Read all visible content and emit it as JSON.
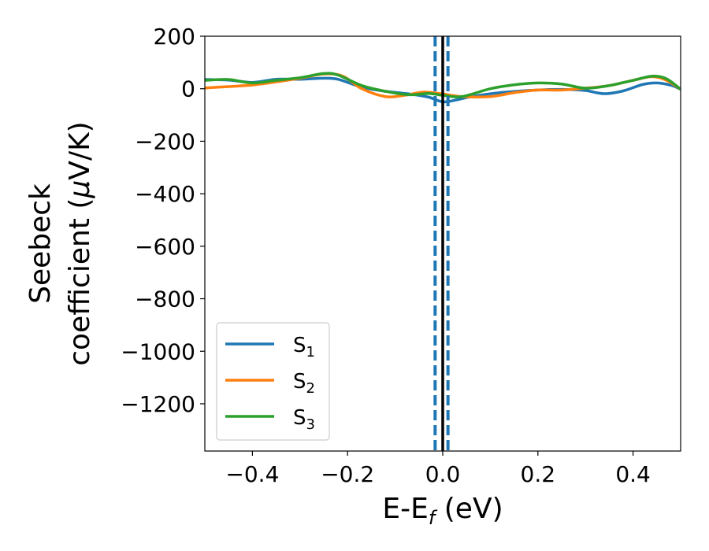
{
  "chart_data": {
    "type": "line",
    "title": "",
    "xlabel": {
      "main": "E-E",
      "sub": "f",
      "unit": " (eV)"
    },
    "ylabel": {
      "line1": "Seebeck",
      "line2_pre": "coefficient  (",
      "mu": "μ",
      "line2_post": "V/K)"
    },
    "xlim": [
      -0.5,
      0.5
    ],
    "ylim": [
      -1380,
      200
    ],
    "xticks": [
      -0.4,
      -0.2,
      0.0,
      0.2,
      0.4
    ],
    "xtick_labels": [
      "−0.4",
      "−0.2",
      "0.0",
      "0.2",
      "0.4"
    ],
    "yticks": [
      200,
      0,
      -200,
      -400,
      -600,
      -800,
      -1000,
      -1200
    ],
    "ytick_labels": [
      "200",
      "0",
      "−200",
      "−400",
      "−600",
      "−800",
      "−1000",
      "−1200"
    ],
    "grid": false,
    "legend_position": "lower-left",
    "vlines": [
      {
        "x": -0.016,
        "style": "dashed",
        "color": "#1f77b4"
      },
      {
        "x": 0.0,
        "style": "solid",
        "color": "#000000"
      },
      {
        "x": 0.011,
        "style": "dashed",
        "color": "#1f77b4"
      }
    ],
    "series": [
      {
        "name": "S",
        "sub": "1",
        "color": "#1f77b4",
        "x": [
          -0.5,
          -0.45,
          -0.4,
          -0.35,
          -0.3,
          -0.25,
          -0.22,
          -0.17,
          -0.12,
          -0.07,
          -0.03,
          0.0,
          0.03,
          0.06,
          0.12,
          0.2,
          0.26,
          0.3,
          0.34,
          0.38,
          0.42,
          0.45,
          0.48,
          0.5
        ],
        "y": [
          35,
          33,
          24,
          36,
          36,
          40,
          36,
          6,
          -10,
          -20,
          -32,
          -50,
          -42,
          -30,
          -15,
          -5,
          -3,
          -7,
          -19,
          -8,
          16,
          22,
          13,
          -2
        ]
      },
      {
        "name": "S",
        "sub": "2",
        "color": "#ff7f0e",
        "x": [
          -0.5,
          -0.45,
          -0.4,
          -0.35,
          -0.3,
          -0.25,
          -0.21,
          -0.17,
          -0.12,
          -0.08,
          -0.04,
          0.0,
          0.04,
          0.1,
          0.15,
          0.2,
          0.25,
          0.3,
          0.35,
          0.4,
          0.44,
          0.47,
          0.5
        ],
        "y": [
          3,
          8,
          14,
          26,
          40,
          56,
          48,
          0,
          -30,
          -25,
          -13,
          -20,
          -30,
          -30,
          -15,
          -5,
          -5,
          2,
          12,
          32,
          46,
          32,
          -2
        ]
      },
      {
        "name": "S",
        "sub": "3",
        "color": "#2ca02c",
        "x": [
          -0.5,
          -0.45,
          -0.4,
          -0.35,
          -0.3,
          -0.25,
          -0.22,
          -0.17,
          -0.12,
          -0.07,
          -0.03,
          0.0,
          0.04,
          0.1,
          0.15,
          0.2,
          0.25,
          0.3,
          0.35,
          0.4,
          0.44,
          0.47,
          0.5
        ],
        "y": [
          32,
          35,
          22,
          32,
          42,
          58,
          52,
          12,
          -10,
          -23,
          -18,
          -25,
          -30,
          0,
          15,
          22,
          18,
          2,
          12,
          32,
          48,
          38,
          -2
        ]
      }
    ]
  }
}
